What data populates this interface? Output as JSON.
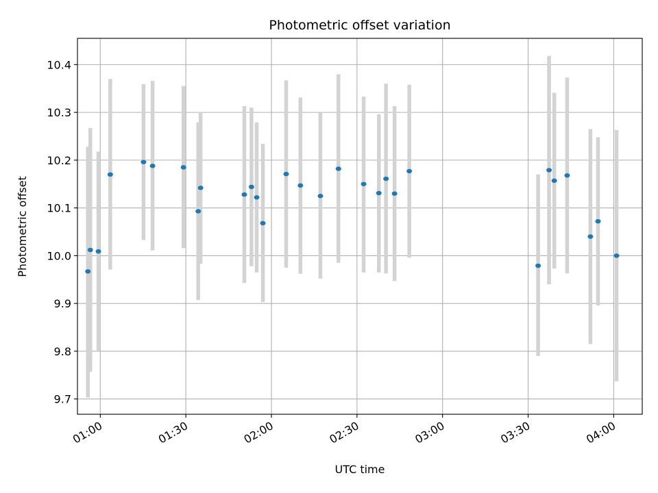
{
  "chart_data": {
    "type": "scatter",
    "title": "Photometric offset variation",
    "xlabel": "UTC time",
    "ylabel": "Photometric offset",
    "grid": true,
    "xlim": [
      "00:52:00",
      "04:10:00"
    ],
    "ylim": [
      9.668,
      10.455
    ],
    "x_ticks": [
      "01:00",
      "01:30",
      "02:00",
      "02:30",
      "03:00",
      "03:30",
      "04:00"
    ],
    "y_ticks": [
      "9.7",
      "9.8",
      "9.9",
      "10.0",
      "10.1",
      "10.2",
      "10.3",
      "10.4"
    ],
    "marker_color": "#1f77b4",
    "errorbar_color": "#d3d3d3",
    "series": [
      {
        "points": [
          {
            "x": "00:55:40",
            "y": 9.967,
            "ylow": 9.703,
            "yhigh": 10.228
          },
          {
            "x": "00:56:30",
            "y": 10.012,
            "ylow": 9.757,
            "yhigh": 10.267
          },
          {
            "x": "00:59:20",
            "y": 10.009,
            "ylow": 9.8,
            "yhigh": 10.218
          },
          {
            "x": "01:03:30",
            "y": 10.17,
            "ylow": 9.971,
            "yhigh": 10.37
          },
          {
            "x": "01:15:10",
            "y": 10.196,
            "ylow": 10.033,
            "yhigh": 10.359
          },
          {
            "x": "01:18:20",
            "y": 10.188,
            "ylow": 10.011,
            "yhigh": 10.366
          },
          {
            "x": "01:29:10",
            "y": 10.185,
            "ylow": 10.016,
            "yhigh": 10.355
          },
          {
            "x": "01:34:20",
            "y": 10.093,
            "ylow": 9.907,
            "yhigh": 10.279
          },
          {
            "x": "01:35:10",
            "y": 10.142,
            "ylow": 9.983,
            "yhigh": 10.301
          },
          {
            "x": "01:50:30",
            "y": 10.128,
            "ylow": 9.943,
            "yhigh": 10.313
          },
          {
            "x": "01:53:00",
            "y": 10.144,
            "ylow": 9.978,
            "yhigh": 10.31
          },
          {
            "x": "01:54:50",
            "y": 10.122,
            "ylow": 9.965,
            "yhigh": 10.279
          },
          {
            "x": "01:57:00",
            "y": 10.068,
            "ylow": 9.903,
            "yhigh": 10.234
          },
          {
            "x": "02:05:10",
            "y": 10.171,
            "ylow": 9.975,
            "yhigh": 10.367
          },
          {
            "x": "02:10:10",
            "y": 10.147,
            "ylow": 9.962,
            "yhigh": 10.331
          },
          {
            "x": "02:17:10",
            "y": 10.125,
            "ylow": 9.952,
            "yhigh": 10.299
          },
          {
            "x": "02:23:30",
            "y": 10.182,
            "ylow": 9.985,
            "yhigh": 10.38
          },
          {
            "x": "02:32:20",
            "y": 10.15,
            "ylow": 9.965,
            "yhigh": 10.333
          },
          {
            "x": "02:37:40",
            "y": 10.131,
            "ylow": 9.965,
            "yhigh": 10.296
          },
          {
            "x": "02:40:10",
            "y": 10.161,
            "ylow": 9.963,
            "yhigh": 10.36
          },
          {
            "x": "02:43:10",
            "y": 10.13,
            "ylow": 9.947,
            "yhigh": 10.313
          },
          {
            "x": "02:48:20",
            "y": 10.177,
            "ylow": 9.996,
            "yhigh": 10.358
          },
          {
            "x": "03:33:30",
            "y": 9.979,
            "ylow": 9.79,
            "yhigh": 10.17
          },
          {
            "x": "03:37:20",
            "y": 10.179,
            "ylow": 9.94,
            "yhigh": 10.418
          },
          {
            "x": "03:39:10",
            "y": 10.157,
            "ylow": 9.973,
            "yhigh": 10.341
          },
          {
            "x": "03:43:40",
            "y": 10.168,
            "ylow": 9.963,
            "yhigh": 10.373
          },
          {
            "x": "03:51:50",
            "y": 10.04,
            "ylow": 9.815,
            "yhigh": 10.265
          },
          {
            "x": "03:54:30",
            "y": 10.072,
            "ylow": 9.896,
            "yhigh": 10.248
          },
          {
            "x": "04:01:00",
            "y": 10.0,
            "ylow": 9.737,
            "yhigh": 10.263
          }
        ]
      }
    ]
  }
}
